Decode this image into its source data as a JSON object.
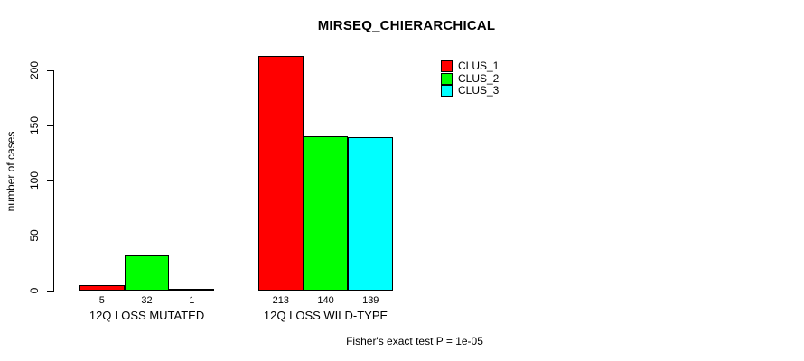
{
  "chart_data": {
    "type": "bar",
    "title": "MIRSEQ_CHIERARCHICAL",
    "xlabel": "",
    "ylabel": "number of cases",
    "categories": [
      "12Q LOSS MUTATED",
      "12Q LOSS WILD-TYPE"
    ],
    "series": [
      {
        "name": "CLUS_1",
        "color": "#ff0000",
        "values": [
          5,
          213
        ]
      },
      {
        "name": "CLUS_2",
        "color": "#00ff00",
        "values": [
          32,
          140
        ]
      },
      {
        "name": "CLUS_3",
        "color": "#00ffff",
        "values": [
          1,
          139
        ]
      }
    ],
    "ylim": [
      0,
      200
    ],
    "yticks": [
      0,
      50,
      100,
      150,
      200
    ],
    "grid": false,
    "legend_position": "top-right",
    "bar_border_color": "#000000",
    "value_labels_shown": true
  },
  "footer": {
    "note": "Fisher's exact test P = 1e-05"
  }
}
